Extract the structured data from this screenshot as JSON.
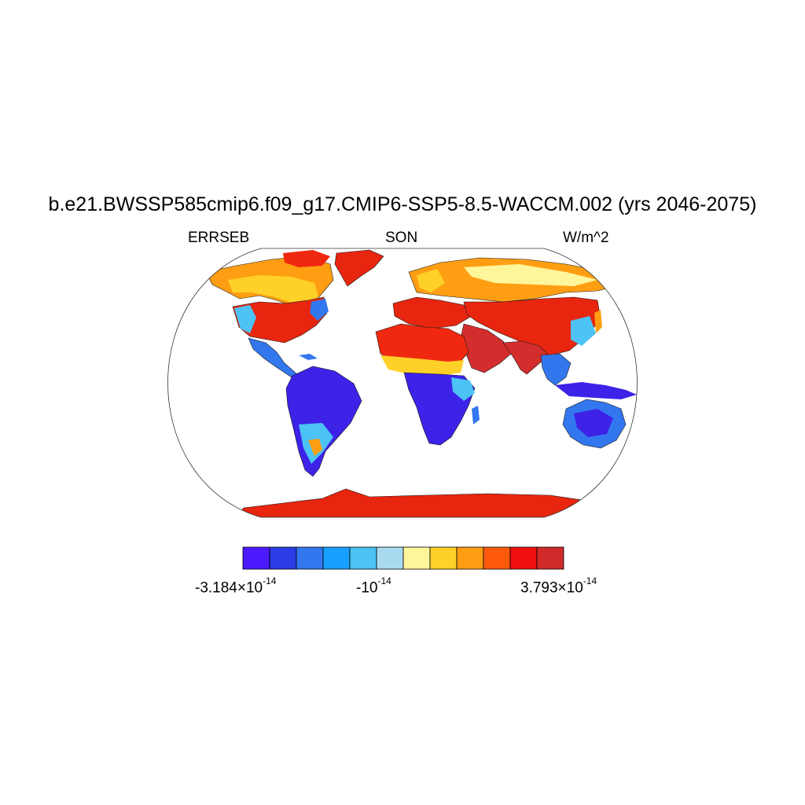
{
  "title": "b.e21.BWSSP585cmip6.f09_g17.CMIP6-SSP5-8.5-WACCM.002 (yrs 2046-2075)",
  "variable": "ERRSEB",
  "season": "SON",
  "units": "W/m^2",
  "colorbar": {
    "colors": [
      "#4b1aff",
      "#2a3de6",
      "#3377ee",
      "#17a0ff",
      "#4cc2f5",
      "#a9d9ef",
      "#fff59b",
      "#ffd128",
      "#ff9e12",
      "#ff5a0c",
      "#f01010",
      "#d02a2a"
    ],
    "labels": [
      {
        "base": "-3.184×10",
        "exp": "-14"
      },
      {
        "base": "-10",
        "exp": "-14"
      },
      {
        "base": "3.793×10",
        "exp": "-14"
      }
    ]
  },
  "map_colors": {
    "land_red": "#e8250f",
    "desert_red": "#f02810",
    "dark_red": "#d42d2d",
    "orange": "#ff9e12",
    "yellow": "#ffd128",
    "pale_yellow": "#fff59b",
    "light_blue": "#a9d9ef",
    "sky_blue": "#4cc2f5",
    "blue": "#3377ee",
    "deep_blue": "#3d22e8",
    "outline": "#1a1a1a"
  }
}
